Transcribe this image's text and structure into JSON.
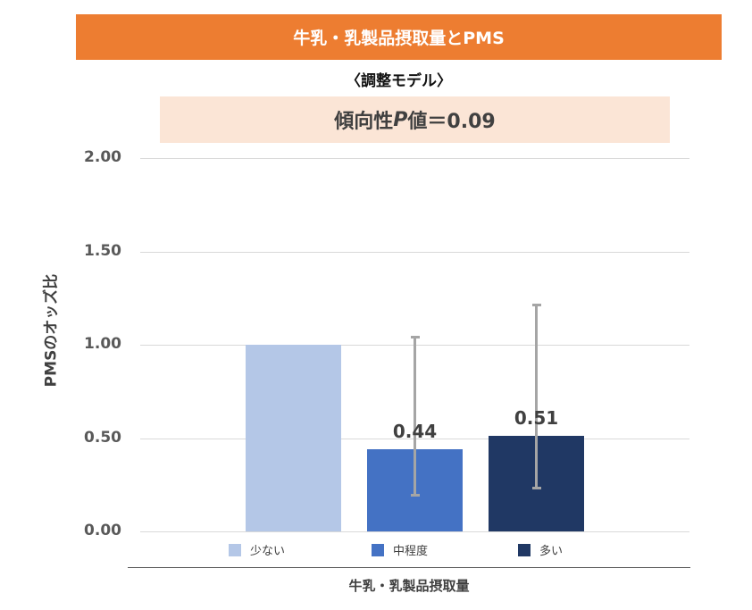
{
  "header": {
    "title": "牛乳・乳製品摂取量とPMS",
    "subtitle": "〈調整モデル〉",
    "p_value_prefix": "傾向性",
    "p_value_italic": "P",
    "p_value_suffix": "値＝0.09"
  },
  "colors": {
    "title_bg": "#ed7d31",
    "pbox_bg": "#fbe5d6",
    "low": "#b4c7e7",
    "medium": "#4472c4",
    "high": "#203864",
    "error_bar": "#a5a5a5"
  },
  "yaxis": {
    "label": "PMSのオッズ比",
    "ticks": [
      "2.00",
      "1.50",
      "1.00",
      "0.50",
      "0.00"
    ]
  },
  "xaxis": {
    "label": "牛乳・乳製品摂取量"
  },
  "bars": [
    {
      "name": "少ない",
      "value": 1.0,
      "label": "",
      "ci_low": null,
      "ci_high": null
    },
    {
      "name": "中程度",
      "value": 0.44,
      "label": "0.44",
      "ci_low": 0.19,
      "ci_high": 1.05
    },
    {
      "name": "多い",
      "value": 0.51,
      "label": "0.51",
      "ci_low": 0.23,
      "ci_high": 1.22
    }
  ],
  "legend": [
    "少ない",
    "中程度",
    "多い"
  ],
  "chart_data": {
    "type": "bar",
    "title": "牛乳・乳製品摂取量とPMS",
    "subtitle": "〈調整モデル〉 傾向性P値＝0.09",
    "categories": [
      "少ない",
      "中程度",
      "多い"
    ],
    "values": [
      1.0,
      0.44,
      0.51
    ],
    "error_bars": {
      "lower": [
        null,
        0.19,
        0.23
      ],
      "upper": [
        null,
        1.05,
        1.22
      ]
    },
    "data_labels": [
      "",
      "0.44",
      "0.51"
    ],
    "xlabel": "牛乳・乳製品摂取量",
    "ylabel": "PMSのオッズ比",
    "ylim": [
      0,
      2.0
    ],
    "yticks": [
      0.0,
      0.5,
      1.0,
      1.5,
      2.0
    ],
    "grid": true,
    "legend_position": "bottom",
    "p_trend": 0.09
  }
}
